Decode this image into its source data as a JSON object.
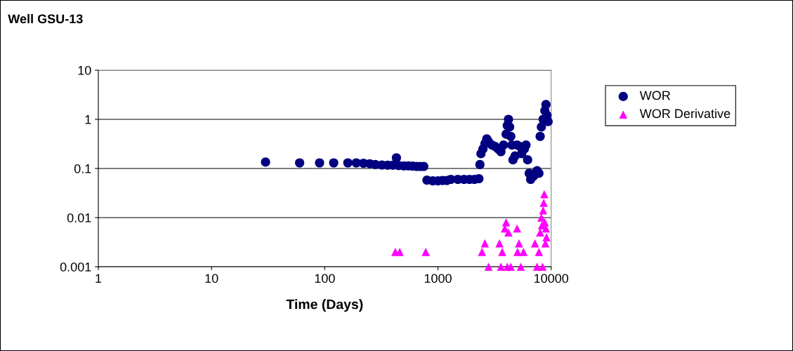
{
  "chart_data": {
    "type": "scatter",
    "title": "Well GSU-13",
    "xlabel": "Time (Days)",
    "log": "xy",
    "xlim": [
      1,
      10000
    ],
    "xticks": [
      1,
      10,
      100,
      1000,
      10000
    ],
    "ylim": [
      0.001,
      10
    ],
    "yticks": [
      0.001,
      0.01,
      0.1,
      1,
      10
    ],
    "grid": "y",
    "legend": "right",
    "series": [
      {
        "name": "WOR",
        "color": "#000080",
        "marker": "circle",
        "x": [
          30,
          60,
          90,
          120,
          160,
          190,
          220,
          250,
          280,
          320,
          360,
          400,
          430,
          450,
          500,
          550,
          600,
          650,
          700,
          750,
          800,
          900,
          1000,
          1100,
          1200,
          1300,
          1500,
          1700,
          1900,
          2100,
          2300,
          2350,
          2400,
          2500,
          2600,
          2700,
          2800,
          3000,
          3200,
          3400,
          3600,
          3800,
          4000,
          4100,
          4200,
          4300,
          4400,
          4500,
          4600,
          4800,
          5000,
          5300,
          5500,
          5800,
          6000,
          6200,
          6400,
          6600,
          7000,
          7500,
          7800,
          8000,
          8200,
          8500,
          8800,
          9000,
          9200,
          9400
        ],
        "values": [
          0.135,
          0.13,
          0.13,
          0.13,
          0.13,
          0.13,
          0.128,
          0.125,
          0.12,
          0.118,
          0.117,
          0.117,
          0.165,
          0.115,
          0.113,
          0.113,
          0.112,
          0.11,
          0.11,
          0.11,
          0.058,
          0.056,
          0.056,
          0.057,
          0.057,
          0.06,
          0.06,
          0.06,
          0.06,
          0.06,
          0.062,
          0.12,
          0.2,
          0.25,
          0.32,
          0.4,
          0.35,
          0.3,
          0.28,
          0.25,
          0.22,
          0.3,
          0.5,
          0.75,
          1.0,
          0.7,
          0.45,
          0.3,
          0.15,
          0.18,
          0.3,
          0.28,
          0.2,
          0.25,
          0.3,
          0.15,
          0.08,
          0.06,
          0.07,
          0.09,
          0.08,
          0.45,
          0.7,
          1.0,
          1.5,
          2.0,
          1.2,
          0.9
        ]
      },
      {
        "name": "WOR Derivative",
        "color": "#ff00ff",
        "marker": "triangle",
        "x": [
          420,
          460,
          780,
          2450,
          2600,
          2800,
          3500,
          3600,
          3700,
          3900,
          4000,
          4100,
          4200,
          4400,
          5000,
          5200,
          5050,
          5400,
          5700,
          7200,
          7500,
          7800,
          8000,
          8200,
          8300,
          8400,
          8500,
          8600,
          8700,
          8800,
          8900,
          9000,
          9100
        ],
        "values": [
          0.002,
          0.002,
          0.002,
          0.002,
          0.003,
          0.001,
          0.003,
          0.001,
          0.002,
          0.006,
          0.008,
          0.001,
          0.005,
          0.001,
          0.006,
          0.003,
          0.002,
          0.001,
          0.002,
          0.003,
          0.001,
          0.002,
          0.005,
          0.01,
          0.007,
          0.001,
          0.014,
          0.02,
          0.03,
          0.008,
          0.003,
          0.006,
          0.004
        ]
      }
    ]
  }
}
